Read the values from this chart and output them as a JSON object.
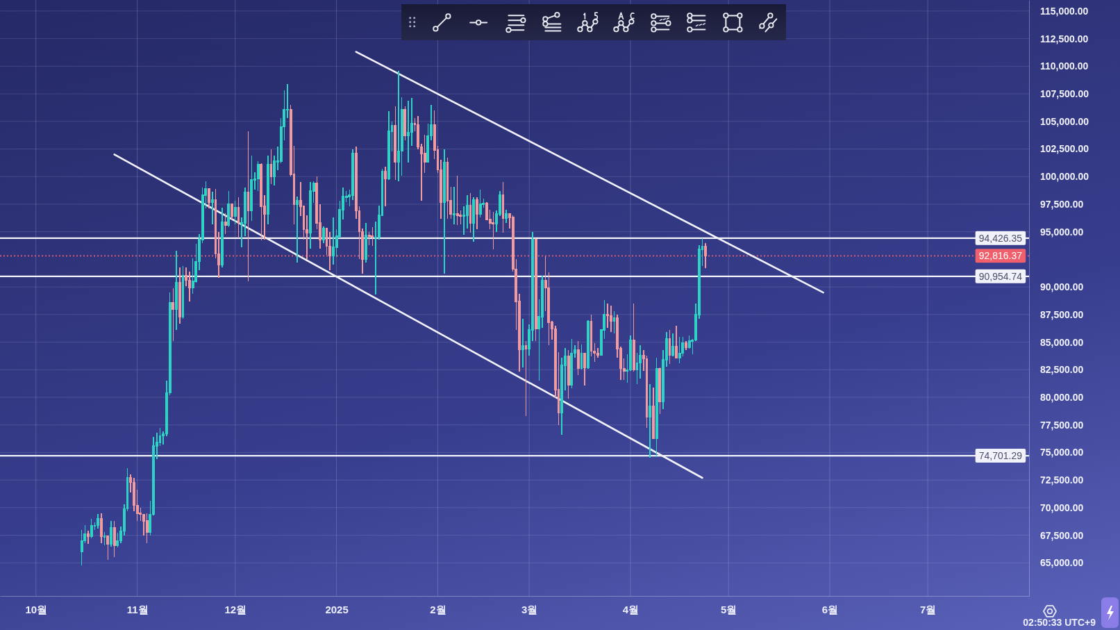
{
  "chart_data": {
    "type": "candlestick",
    "xlim": [
      "2024-09-20",
      "2025-08-01"
    ],
    "ylim": [
      62000,
      116000
    ],
    "xticks": [
      {
        "value": "2024-10-01",
        "label": "10월"
      },
      {
        "value": "2024-11-01",
        "label": "11월"
      },
      {
        "value": "2024-12-01",
        "label": "12월"
      },
      {
        "value": "2025-01-01",
        "label": "2025"
      },
      {
        "value": "2025-02-01",
        "label": "2월"
      },
      {
        "value": "2025-03-01",
        "label": "3월"
      },
      {
        "value": "2025-04-01",
        "label": "4월"
      },
      {
        "value": "2025-05-01",
        "label": "5월"
      },
      {
        "value": "2025-06-01",
        "label": "6월"
      },
      {
        "value": "2025-07-01",
        "label": "7월"
      }
    ],
    "yticks": [
      {
        "value": 65000,
        "label": "65,000.00"
      },
      {
        "value": 67500,
        "label": "67,500.00"
      },
      {
        "value": 70000,
        "label": "70,000.00"
      },
      {
        "value": 72500,
        "label": "72,500.00"
      },
      {
        "value": 75000,
        "label": "75,000.00"
      },
      {
        "value": 77500,
        "label": "77,500.00"
      },
      {
        "value": 80000,
        "label": "80,000.00"
      },
      {
        "value": 82500,
        "label": "82,500.00"
      },
      {
        "value": 85000,
        "label": "85,000.00"
      },
      {
        "value": 87500,
        "label": "87,500.00"
      },
      {
        "value": 90000,
        "label": "90,000.00"
      },
      {
        "value": 95000,
        "label": "95,000.00"
      },
      {
        "value": 97500,
        "label": "97,500.00"
      },
      {
        "value": 100000,
        "label": "100,000.00"
      },
      {
        "value": 102500,
        "label": "102,500.00"
      },
      {
        "value": 105000,
        "label": "105,000.00"
      },
      {
        "value": 107500,
        "label": "107,500.00"
      },
      {
        "value": 110000,
        "label": "110,000.00"
      },
      {
        "value": 112500,
        "label": "112,500.00"
      },
      {
        "value": 115000,
        "label": "115,000.00"
      }
    ],
    "grid": true,
    "series": [
      {
        "type": "candlestick",
        "x": [
          "2024-10-15",
          "2024-10-16",
          "2024-10-17",
          "2024-10-18",
          "2024-10-19",
          "2024-10-20",
          "2024-10-21",
          "2024-10-22",
          "2024-10-23",
          "2024-10-24",
          "2024-10-25",
          "2024-10-26",
          "2024-10-27",
          "2024-10-28",
          "2024-10-29",
          "2024-10-30",
          "2024-10-31",
          "2024-11-01",
          "2024-11-02",
          "2024-11-03",
          "2024-11-04",
          "2024-11-05",
          "2024-11-06",
          "2024-11-07",
          "2024-11-08",
          "2024-11-09",
          "2024-11-10",
          "2024-11-11",
          "2024-11-12",
          "2024-11-13",
          "2024-11-14",
          "2024-11-15",
          "2024-11-16",
          "2024-11-17",
          "2024-11-18",
          "2024-11-19",
          "2024-11-20",
          "2024-11-21",
          "2024-11-22",
          "2024-11-23",
          "2024-11-24",
          "2024-11-25",
          "2024-11-26",
          "2024-11-27",
          "2024-11-28",
          "2024-11-29",
          "2024-11-30",
          "2024-12-01",
          "2024-12-02",
          "2024-12-03",
          "2024-12-04",
          "2024-12-05",
          "2024-12-06",
          "2024-12-07",
          "2024-12-08",
          "2024-12-09",
          "2024-12-10",
          "2024-12-11",
          "2024-12-12",
          "2024-12-13",
          "2024-12-14",
          "2024-12-15",
          "2024-12-16",
          "2024-12-17",
          "2024-12-18",
          "2024-12-19",
          "2024-12-20",
          "2024-12-21",
          "2024-12-22",
          "2024-12-23",
          "2024-12-24",
          "2024-12-25",
          "2024-12-26",
          "2024-12-27",
          "2024-12-28",
          "2024-12-29",
          "2024-12-30",
          "2024-12-31",
          "2025-01-01",
          "2025-01-02",
          "2025-01-03",
          "2025-01-04",
          "2025-01-05",
          "2025-01-06",
          "2025-01-07",
          "2025-01-08",
          "2025-01-09",
          "2025-01-10",
          "2025-01-11",
          "2025-01-12",
          "2025-01-13",
          "2025-01-14",
          "2025-01-15",
          "2025-01-16",
          "2025-01-17",
          "2025-01-18",
          "2025-01-19",
          "2025-01-20",
          "2025-01-21",
          "2025-01-22",
          "2025-01-23",
          "2025-01-24",
          "2025-01-25",
          "2025-01-26",
          "2025-01-27",
          "2025-01-28",
          "2025-01-29",
          "2025-01-30",
          "2025-01-31",
          "2025-02-01",
          "2025-02-02",
          "2025-02-03",
          "2025-02-04",
          "2025-02-05",
          "2025-02-06",
          "2025-02-07",
          "2025-02-08",
          "2025-02-09",
          "2025-02-10",
          "2025-02-11",
          "2025-02-12",
          "2025-02-13",
          "2025-02-14",
          "2025-02-15",
          "2025-02-16",
          "2025-02-17",
          "2025-02-18",
          "2025-02-19",
          "2025-02-20",
          "2025-02-21",
          "2025-02-22",
          "2025-02-23",
          "2025-02-24",
          "2025-02-25",
          "2025-02-26",
          "2025-02-27",
          "2025-02-28",
          "2025-03-01",
          "2025-03-02",
          "2025-03-03",
          "2025-03-04",
          "2025-03-05",
          "2025-03-06",
          "2025-03-07",
          "2025-03-08",
          "2025-03-09",
          "2025-03-10",
          "2025-03-11",
          "2025-03-12",
          "2025-03-13",
          "2025-03-14",
          "2025-03-15",
          "2025-03-16",
          "2025-03-17",
          "2025-03-18",
          "2025-03-19",
          "2025-03-20",
          "2025-03-21",
          "2025-03-22",
          "2025-03-23",
          "2025-03-24",
          "2025-03-25",
          "2025-03-26",
          "2025-03-27",
          "2025-03-28",
          "2025-03-29",
          "2025-03-30",
          "2025-03-31",
          "2025-04-01",
          "2025-04-02",
          "2025-04-03",
          "2025-04-04",
          "2025-04-05",
          "2025-04-06",
          "2025-04-07",
          "2025-04-08",
          "2025-04-09",
          "2025-04-10",
          "2025-04-11",
          "2025-04-12",
          "2025-04-13",
          "2025-04-14",
          "2025-04-15",
          "2025-04-16",
          "2025-04-17",
          "2025-04-18",
          "2025-04-19",
          "2025-04-20",
          "2025-04-21",
          "2025-04-22",
          "2025-04-23",
          "2025-04-24"
        ],
        "ohlc": [
          [
            66000,
            68000,
            64800,
            67000
          ],
          [
            67000,
            68400,
            66800,
            67600
          ],
          [
            67600,
            67900,
            66700,
            67400
          ],
          [
            67400,
            69000,
            67200,
            68400
          ],
          [
            68400,
            68700,
            68000,
            68400
          ],
          [
            68400,
            69400,
            68100,
            69000
          ],
          [
            69000,
            69500,
            66800,
            67400
          ],
          [
            67400,
            67800,
            66600,
            67400
          ],
          [
            67400,
            67500,
            65300,
            66700
          ],
          [
            66700,
            68800,
            66500,
            68200
          ],
          [
            68200,
            68800,
            65500,
            66600
          ],
          [
            66600,
            67700,
            66400,
            67000
          ],
          [
            67000,
            68300,
            66800,
            67900
          ],
          [
            67900,
            70300,
            67500,
            69900
          ],
          [
            69900,
            73600,
            69700,
            72700
          ],
          [
            72700,
            73000,
            71400,
            72300
          ],
          [
            72300,
            72700,
            69700,
            70200
          ],
          [
            70200,
            71600,
            68800,
            69500
          ],
          [
            69500,
            70000,
            68800,
            69400
          ],
          [
            69400,
            69400,
            67500,
            68800
          ],
          [
            68800,
            69500,
            66800,
            67800
          ],
          [
            67800,
            70600,
            67500,
            69400
          ],
          [
            69400,
            76400,
            69300,
            75600
          ],
          [
            75600,
            76800,
            74400,
            75900
          ],
          [
            75900,
            77200,
            75600,
            76500
          ],
          [
            76500,
            76900,
            75700,
            76700
          ],
          [
            76700,
            81500,
            76500,
            80400
          ],
          [
            80400,
            89500,
            80200,
            88600
          ],
          [
            88600,
            89900,
            85100,
            88000
          ],
          [
            88000,
            93300,
            86100,
            90400
          ],
          [
            90400,
            91800,
            86700,
            87300
          ],
          [
            87300,
            91900,
            87100,
            91000
          ],
          [
            91000,
            91800,
            90100,
            90600
          ],
          [
            90600,
            91400,
            88700,
            89900
          ],
          [
            89900,
            92600,
            89400,
            90500
          ],
          [
            90500,
            93900,
            90400,
            92300
          ],
          [
            92300,
            94800,
            91500,
            94300
          ],
          [
            94300,
            99000,
            94000,
            98300
          ],
          [
            98300,
            99600,
            97100,
            98900
          ],
          [
            98900,
            98900,
            97100,
            97700
          ],
          [
            97700,
            98600,
            95700,
            97900
          ],
          [
            97900,
            98900,
            92600,
            93000
          ],
          [
            93000,
            95000,
            90800,
            92000
          ],
          [
            92000,
            97200,
            91800,
            95900
          ],
          [
            95900,
            96700,
            94800,
            95600
          ],
          [
            95600,
            98700,
            95400,
            97500
          ],
          [
            97500,
            97500,
            96100,
            96400
          ],
          [
            96400,
            97800,
            95700,
            97200
          ],
          [
            97200,
            98100,
            94400,
            95800
          ],
          [
            95800,
            96300,
            93600,
            95800
          ],
          [
            95800,
            99000,
            94600,
            98600
          ],
          [
            98600,
            104100,
            90500,
            96900
          ],
          [
            96900,
            101900,
            96000,
            99700
          ],
          [
            99700,
            100400,
            98800,
            99800
          ],
          [
            99800,
            101400,
            98700,
            101100
          ],
          [
            101100,
            101200,
            94200,
            97300
          ],
          [
            97300,
            98300,
            94300,
            96600
          ],
          [
            96600,
            101900,
            95700,
            101100
          ],
          [
            101100,
            102500,
            99300,
            100000
          ],
          [
            100000,
            101900,
            99200,
            101400
          ],
          [
            101400,
            102700,
            100600,
            101400
          ],
          [
            101400,
            105300,
            101200,
            104500
          ],
          [
            104500,
            107800,
            103300,
            106100
          ],
          [
            106100,
            108400,
            105300,
            106100
          ],
          [
            106100,
            106500,
            100000,
            100200
          ],
          [
            100200,
            102800,
            95700,
            97500
          ],
          [
            97500,
            98200,
            92200,
            97800
          ],
          [
            97800,
            99500,
            96400,
            97300
          ],
          [
            97300,
            97400,
            94300,
            95200
          ],
          [
            95200,
            96500,
            92500,
            94900
          ],
          [
            94900,
            99500,
            93500,
            98700
          ],
          [
            98700,
            99600,
            97600,
            99400
          ],
          [
            99400,
            100000,
            95200,
            95800
          ],
          [
            95800,
            97500,
            93500,
            94300
          ],
          [
            94300,
            95500,
            94000,
            95300
          ],
          [
            95300,
            95300,
            92900,
            93700
          ],
          [
            93700,
            95000,
            91500,
            92800
          ],
          [
            92800,
            96300,
            92000,
            93600
          ],
          [
            93600,
            95200,
            92700,
            94600
          ],
          [
            94600,
            97800,
            94400,
            97000
          ],
          [
            97000,
            99000,
            96100,
            98200
          ],
          [
            98200,
            98700,
            97700,
            98200
          ],
          [
            98200,
            98800,
            97300,
            98300
          ],
          [
            98300,
            102500,
            97900,
            102100
          ],
          [
            102100,
            102700,
            96200,
            96900
          ],
          [
            96900,
            97300,
            92500,
            95000
          ],
          [
            95000,
            95300,
            91200,
            92500
          ],
          [
            92500,
            95800,
            92200,
            94700
          ],
          [
            94700,
            95000,
            93800,
            94600
          ],
          [
            94600,
            95400,
            93700,
            94500
          ],
          [
            94500,
            95900,
            89300,
            94500
          ],
          [
            94500,
            97400,
            94300,
            96500
          ],
          [
            96500,
            100700,
            96500,
            100500
          ],
          [
            100500,
            100900,
            97300,
            99800
          ],
          [
            99800,
            105900,
            99700,
            104100
          ],
          [
            104100,
            105000,
            102300,
            104600
          ],
          [
            104600,
            106400,
            99700,
            101300
          ],
          [
            101300,
            109600,
            99600,
            102300
          ],
          [
            102300,
            107200,
            100100,
            106100
          ],
          [
            106100,
            106400,
            103300,
            103700
          ],
          [
            103700,
            106900,
            101300,
            104000
          ],
          [
            104000,
            107100,
            102800,
            104800
          ],
          [
            104800,
            105300,
            104100,
            104700
          ],
          [
            104700,
            105500,
            102500,
            102700
          ],
          [
            102700,
            103000,
            97800,
            102100
          ],
          [
            102100,
            103800,
            100300,
            101300
          ],
          [
            101300,
            104800,
            101300,
            103700
          ],
          [
            103700,
            106500,
            103300,
            104700
          ],
          [
            104700,
            106000,
            101600,
            102400
          ],
          [
            102400,
            102800,
            100300,
            100600
          ],
          [
            100600,
            101500,
            96200,
            97700
          ],
          [
            97700,
            102500,
            91200,
            101300
          ],
          [
            101300,
            101700,
            96200,
            97800
          ],
          [
            97800,
            99100,
            96200,
            96600
          ],
          [
            96600,
            99100,
            95700,
            96600
          ],
          [
            96600,
            100100,
            95600,
            96500
          ],
          [
            96500,
            96900,
            95700,
            96400
          ],
          [
            96400,
            97300,
            94700,
            96500
          ],
          [
            96500,
            98300,
            95300,
            97400
          ],
          [
            97400,
            98500,
            94900,
            95800
          ],
          [
            95800,
            98100,
            94100,
            97900
          ],
          [
            97900,
            98100,
            95200,
            96600
          ],
          [
            96600,
            98800,
            96300,
            97500
          ],
          [
            97500,
            98000,
            97200,
            97600
          ],
          [
            97600,
            97700,
            96100,
            96100
          ],
          [
            96100,
            97000,
            95200,
            95800
          ],
          [
            95800,
            96800,
            93400,
            95700
          ],
          [
            95700,
            96900,
            95000,
            96600
          ],
          [
            96600,
            98700,
            96400,
            98300
          ],
          [
            98300,
            99500,
            94900,
            96200
          ],
          [
            96200,
            97000,
            95800,
            96600
          ],
          [
            96600,
            96700,
            95300,
            96300
          ],
          [
            96300,
            96500,
            91400,
            91600
          ],
          [
            91600,
            92500,
            86100,
            88700
          ],
          [
            88700,
            89400,
            82300,
            84300
          ],
          [
            84300,
            87100,
            82700,
            84700
          ],
          [
            84700,
            85100,
            78300,
            84400
          ],
          [
            84400,
            86600,
            83800,
            86100
          ],
          [
            86100,
            95000,
            85100,
            94300
          ],
          [
            94300,
            94400,
            85100,
            86200
          ],
          [
            86200,
            88900,
            81500,
            87300
          ],
          [
            87300,
            91000,
            86300,
            90600
          ],
          [
            90600,
            92800,
            87800,
            89900
          ],
          [
            89900,
            91300,
            84700,
            86800
          ],
          [
            86800,
            86900,
            85200,
            86200
          ],
          [
            86200,
            86500,
            80000,
            80700
          ],
          [
            80700,
            84100,
            77500,
            78600
          ],
          [
            78600,
            83600,
            76600,
            82900
          ],
          [
            82900,
            84500,
            80600,
            83700
          ],
          [
            83700,
            84300,
            79900,
            81100
          ],
          [
            81100,
            85300,
            80800,
            84000
          ],
          [
            84000,
            84700,
            83600,
            84300
          ],
          [
            84300,
            85100,
            82000,
            82600
          ],
          [
            82600,
            84800,
            82500,
            84000
          ],
          [
            84000,
            84000,
            81100,
            82700
          ],
          [
            82700,
            87000,
            82600,
            86900
          ],
          [
            86900,
            87500,
            83700,
            84200
          ],
          [
            84200,
            84900,
            83200,
            84000
          ],
          [
            84000,
            84500,
            83600,
            83800
          ],
          [
            83800,
            86100,
            83800,
            86100
          ],
          [
            86100,
            88800,
            85300,
            87500
          ],
          [
            87500,
            88500,
            86300,
            87400
          ],
          [
            87400,
            88300,
            85900,
            86900
          ],
          [
            86900,
            87800,
            85800,
            87200
          ],
          [
            87200,
            87500,
            83600,
            84400
          ],
          [
            84400,
            84600,
            81600,
            82600
          ],
          [
            82600,
            83500,
            81600,
            82400
          ],
          [
            82400,
            83900,
            81300,
            82500
          ],
          [
            82500,
            85600,
            82400,
            85200
          ],
          [
            85200,
            88500,
            82300,
            82500
          ],
          [
            82500,
            84000,
            81200,
            83100
          ],
          [
            83100,
            84700,
            81700,
            83800
          ],
          [
            83800,
            84300,
            82400,
            83500
          ],
          [
            83500,
            83800,
            77200,
            78200
          ],
          [
            78200,
            81200,
            74500,
            79200
          ],
          [
            79200,
            80900,
            76200,
            76300
          ],
          [
            76300,
            83600,
            74600,
            82600
          ],
          [
            82600,
            82700,
            78500,
            79600
          ],
          [
            79600,
            84300,
            78900,
            83400
          ],
          [
            83400,
            85900,
            82800,
            85300
          ],
          [
            85300,
            86100,
            83000,
            83800
          ],
          [
            83800,
            85800,
            83700,
            84600
          ],
          [
            84600,
            86500,
            83600,
            83600
          ],
          [
            83600,
            85500,
            83100,
            84000
          ],
          [
            84000,
            85500,
            83700,
            84900
          ],
          [
            84900,
            85100,
            84300,
            84500
          ],
          [
            84500,
            85600,
            84400,
            85100
          ],
          [
            85100,
            85300,
            83900,
            85200
          ],
          [
            85200,
            88500,
            85100,
            87500
          ],
          [
            87500,
            93800,
            87100,
            93400
          ],
          [
            93400,
            94400,
            91900,
            93700
          ],
          [
            93700,
            94000,
            91700,
            92800
          ]
        ],
        "colors": [
          "#2fd3c6",
          "#2fd3c6",
          "#f19aa0",
          "#2fd3c6",
          "#2fd3c6",
          "#2fd3c6",
          "#f19aa0",
          "#2fd3c6",
          "#f19aa0",
          "#2fd3c6",
          "#f19aa0",
          "#2fd3c6",
          "#2fd3c6",
          "#2fd3c6",
          "#2fd3c6",
          "#f19aa0",
          "#f19aa0",
          "#f19aa0",
          "#f19aa0",
          "#f19aa0",
          "#f19aa0",
          "#2fd3c6",
          "#2fd3c6",
          "#2fd3c6",
          "#2fd3c6",
          "#2fd3c6",
          "#2fd3c6",
          "#2fd3c6",
          "#f19aa0",
          "#2fd3c6",
          "#f19aa0",
          "#2fd3c6",
          "#f19aa0",
          "#f19aa0",
          "#2fd3c6",
          "#2fd3c6",
          "#2fd3c6",
          "#2fd3c6",
          "#2fd3c6",
          "#f19aa0",
          "#2fd3c6",
          "#f19aa0",
          "#f19aa0",
          "#2fd3c6",
          "#f19aa0",
          "#2fd3c6",
          "#f19aa0",
          "#2fd3c6",
          "#f19aa0",
          "#2fd3c6",
          "#2fd3c6",
          "#f19aa0",
          "#2fd3c6",
          "#2fd3c6",
          "#2fd3c6",
          "#f19aa0",
          "#f19aa0",
          "#2fd3c6",
          "#f19aa0",
          "#2fd3c6",
          "#2fd3c6",
          "#2fd3c6",
          "#2fd3c6",
          "#2fd3c6",
          "#f19aa0",
          "#f19aa0",
          "#2fd3c6",
          "#f19aa0",
          "#f19aa0",
          "#f19aa0",
          "#2fd3c6",
          "#2fd3c6",
          "#f19aa0",
          "#f19aa0",
          "#2fd3c6",
          "#f19aa0",
          "#f19aa0",
          "#2fd3c6",
          "#2fd3c6",
          "#2fd3c6",
          "#2fd3c6",
          "#2fd3c6",
          "#2fd3c6",
          "#2fd3c6",
          "#f19aa0",
          "#f19aa0",
          "#f19aa0",
          "#2fd3c6",
          "#f19aa0",
          "#f19aa0",
          "#2fd3c6",
          "#2fd3c6",
          "#2fd3c6",
          "#f19aa0",
          "#2fd3c6",
          "#2fd3c6",
          "#f19aa0",
          "#2fd3c6",
          "#2fd3c6",
          "#f19aa0",
          "#2fd3c6",
          "#2fd3c6",
          "#f19aa0",
          "#f19aa0",
          "#f19aa0",
          "#f19aa0",
          "#2fd3c6",
          "#2fd3c6",
          "#f19aa0",
          "#f19aa0",
          "#f19aa0",
          "#2fd3c6",
          "#f19aa0",
          "#f19aa0",
          "#2fd3c6",
          "#f19aa0",
          "#f19aa0",
          "#2fd3c6",
          "#2fd3c6",
          "#f19aa0",
          "#2fd3c6",
          "#f19aa0",
          "#2fd3c6",
          "#2fd3c6",
          "#f19aa0",
          "#f19aa0",
          "#f19aa0",
          "#2fd3c6",
          "#2fd3c6",
          "#f19aa0",
          "#2fd3c6",
          "#f19aa0",
          "#f19aa0",
          "#f19aa0",
          "#f19aa0",
          "#2fd3c6",
          "#f19aa0",
          "#2fd3c6",
          "#2fd3c6",
          "#f19aa0",
          "#2fd3c6",
          "#2fd3c6",
          "#f19aa0",
          "#f19aa0",
          "#f19aa0",
          "#f19aa0",
          "#f19aa0",
          "#2fd3c6",
          "#2fd3c6",
          "#f19aa0",
          "#2fd3c6",
          "#2fd3c6",
          "#f19aa0",
          "#2fd3c6",
          "#f19aa0",
          "#2fd3c6",
          "#f19aa0",
          "#f19aa0",
          "#f19aa0",
          "#2fd3c6",
          "#2fd3c6",
          "#f19aa0",
          "#f19aa0",
          "#2fd3c6",
          "#f19aa0",
          "#f19aa0",
          "#f19aa0",
          "#2fd3c6",
          "#2fd3c6",
          "#f19aa0",
          "#2fd3c6",
          "#2fd3c6",
          "#f19aa0",
          "#f19aa0",
          "#2fd3c6",
          "#f19aa0",
          "#2fd3c6",
          "#f19aa0",
          "#2fd3c6",
          "#2fd3c6",
          "#f19aa0",
          "#2fd3c6",
          "#f19aa0",
          "#2fd3c6",
          "#2fd3c6",
          "#f19aa0",
          "#2fd3c6",
          "#2fd3c6",
          "#2fd3c6",
          "#2fd3c6",
          "#2fd3c6",
          "#f19aa0"
        ]
      },
      {
        "type": "line",
        "x": [
          "2025-01-07",
          "2025-05-30"
        ],
        "values": [
          111300,
          89500
        ],
        "color": "#f2f3fa"
      },
      {
        "type": "line",
        "x": [
          "2024-10-25",
          "2025-04-23"
        ],
        "values": [
          102000,
          72700
        ],
        "color": "#f2f3fa"
      }
    ],
    "ref_lines": [
      {
        "axis": "y",
        "value": 94426.35,
        "label": "94,426.35",
        "color": "#f2f3fa"
      },
      {
        "axis": "y",
        "value": 92816.37,
        "label": "92,816.37",
        "color": "#ef5f6c",
        "line_style": "dotted"
      },
      {
        "axis": "y",
        "value": 90954.74,
        "label": "90,954.74",
        "color": "#f2f3fa"
      },
      {
        "axis": "y",
        "value": 74701.29,
        "label": "74,701.29",
        "color": "#f2f3fa"
      }
    ],
    "annotations": [
      "02:50:33 UTC+9"
    ]
  }
}
